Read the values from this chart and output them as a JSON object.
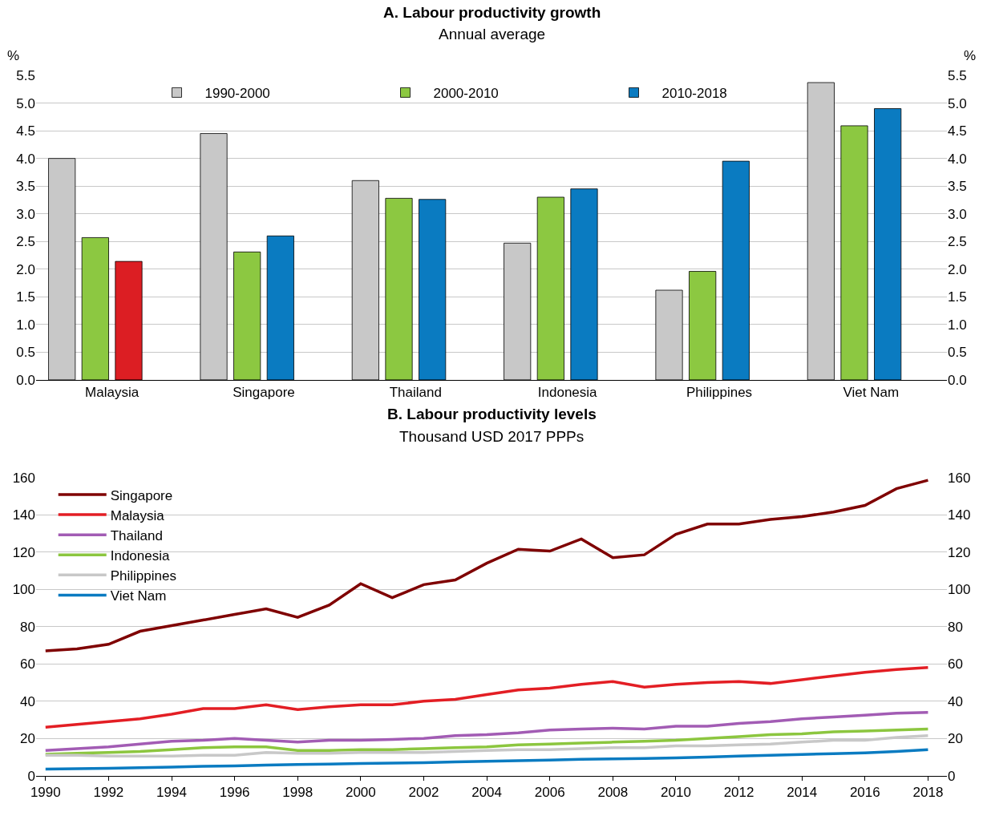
{
  "chart_data": [
    {
      "type": "bar",
      "title": "A. Labour productivity growth",
      "subtitle": "Annual average",
      "ylabel": "%",
      "y2label": "%",
      "categories": [
        "Malaysia",
        "Singapore",
        "Thailand",
        "Indonesia",
        "Philippines",
        "Viet Nam"
      ],
      "series": [
        {
          "name": "1990-2000",
          "color": "#c8c8c8",
          "values": [
            4.0,
            4.45,
            3.6,
            2.47,
            1.62,
            5.37
          ]
        },
        {
          "name": "2000-2010",
          "color": "#8cc841",
          "values": [
            2.57,
            2.31,
            3.28,
            3.3,
            1.96,
            4.59
          ]
        },
        {
          "name": "2010-2018",
          "color": "#0a7bc1",
          "colors": [
            "#dc1e23",
            "#0a7bc1",
            "#0a7bc1",
            "#0a7bc1",
            "#0a7bc1",
            "#0a7bc1"
          ],
          "values": [
            2.14,
            2.6,
            3.26,
            3.45,
            3.95,
            4.9
          ]
        }
      ],
      "ylim": [
        0,
        5.5
      ],
      "yticks": [
        {
          "value": 0,
          "label": "0.0"
        },
        {
          "value": 0.5,
          "label": "0.5"
        },
        {
          "value": 1,
          "label": "1.0"
        },
        {
          "value": 1.5,
          "label": "1.5"
        },
        {
          "value": 2,
          "label": "2.0"
        },
        {
          "value": 2.5,
          "label": "2.5"
        },
        {
          "value": 3,
          "label": "3.0"
        },
        {
          "value": 3.5,
          "label": "3.5"
        },
        {
          "value": 4,
          "label": "4.0"
        },
        {
          "value": 4.5,
          "label": "4.5"
        },
        {
          "value": 5,
          "label": "5.0"
        },
        {
          "value": 5.5,
          "label": "5.5"
        }
      ],
      "y2lim": [
        0,
        5.5
      ],
      "y2ticks": [
        {
          "value": 0,
          "label": "0.0"
        },
        {
          "value": 0.5,
          "label": "0.5"
        },
        {
          "value": 1,
          "label": "1.0"
        },
        {
          "value": 1.5,
          "label": "1.5"
        },
        {
          "value": 2,
          "label": "2.0"
        },
        {
          "value": 2.5,
          "label": "2.5"
        },
        {
          "value": 3,
          "label": "3.0"
        },
        {
          "value": 3.5,
          "label": "3.5"
        },
        {
          "value": 4,
          "label": "4.0"
        },
        {
          "value": 4.5,
          "label": "4.5"
        },
        {
          "value": 5,
          "label": "5.0"
        },
        {
          "value": 5.5,
          "label": "5.5"
        }
      ],
      "grid": "y",
      "legend": "top"
    },
    {
      "type": "line",
      "title": "B. Labour productivity levels",
      "subtitle": "Thousand USD 2017 PPPs",
      "x": [
        1990,
        1991,
        1992,
        1993,
        1994,
        1995,
        1996,
        1997,
        1998,
        1999,
        2000,
        2001,
        2002,
        2003,
        2004,
        2005,
        2006,
        2007,
        2008,
        2009,
        2010,
        2011,
        2012,
        2013,
        2014,
        2015,
        2016,
        2017,
        2018
      ],
      "series": [
        {
          "name": "Singapore",
          "color": "#7f0000",
          "values": [
            67,
            68,
            70.5,
            77.5,
            80.5,
            83.5,
            86.5,
            89.5,
            85,
            91.5,
            103,
            95.5,
            102.5,
            105,
            114,
            121.5,
            120.5,
            127,
            117,
            118.5,
            129.5,
            135,
            135,
            137.5,
            139,
            141.5,
            145,
            154,
            158.5
          ]
        },
        {
          "name": "Malaysia",
          "color": "#e31e24",
          "values": [
            26,
            27.5,
            29,
            30.5,
            33,
            36,
            36,
            38,
            35.5,
            37,
            38,
            38,
            40,
            41,
            43.5,
            46,
            47,
            49,
            50.5,
            47.5,
            49,
            50,
            50.5,
            49.5,
            51.5,
            53.5,
            55.5,
            57,
            58
          ]
        },
        {
          "name": "Thailand",
          "color": "#a25cb4",
          "values": [
            13.5,
            14.5,
            15.5,
            17,
            18.5,
            19,
            20,
            19,
            18,
            19,
            19,
            19.5,
            20,
            21.5,
            22,
            23,
            24.5,
            25,
            25.5,
            25,
            26.5,
            26.5,
            28,
            29,
            30.5,
            31.5,
            32.5,
            33.5,
            34
          ]
        },
        {
          "name": "Indonesia",
          "color": "#8cc63f",
          "values": [
            11.5,
            12,
            12.5,
            13,
            14,
            15,
            15.5,
            15.5,
            13.5,
            13.5,
            14,
            14,
            14.5,
            15,
            15.5,
            16.5,
            17,
            17.5,
            18,
            18.5,
            19,
            20,
            21,
            22,
            22.5,
            23.5,
            24,
            24.5,
            25
          ]
        },
        {
          "name": "Philippines",
          "color": "#c8c8c8",
          "values": [
            11,
            11,
            10.5,
            10.5,
            10.5,
            11,
            11,
            12.5,
            12,
            12,
            12.5,
            12.5,
            12.5,
            13,
            13.5,
            14,
            14,
            14.5,
            15,
            15,
            16,
            16,
            16.5,
            17,
            18,
            19,
            19,
            20.5,
            21.5
          ]
        },
        {
          "name": "Viet Nam",
          "color": "#0a7bc1",
          "values": [
            3.5,
            3.7,
            4,
            4.3,
            4.6,
            5,
            5.3,
            5.7,
            6,
            6.2,
            6.5,
            6.8,
            7,
            7.4,
            7.7,
            8,
            8.4,
            8.8,
            9,
            9.2,
            9.6,
            10,
            10.5,
            11,
            11.4,
            11.8,
            12.3,
            13,
            14
          ]
        }
      ],
      "xlim": [
        1989.7,
        2018.6
      ],
      "xticks": [
        1990,
        1992,
        1994,
        1996,
        1998,
        2000,
        2002,
        2004,
        2006,
        2008,
        2010,
        2012,
        2014,
        2016,
        2018
      ],
      "ylim": [
        0,
        160
      ],
      "yticks": [
        0,
        20,
        40,
        60,
        80,
        100,
        120,
        140,
        160
      ],
      "y2lim": [
        0,
        160
      ],
      "y2ticks": [
        0,
        20,
        40,
        60,
        80,
        100,
        120,
        140,
        160
      ],
      "grid": "y",
      "legend": "top left",
      "line_style": "solid",
      "marker": "none"
    }
  ]
}
